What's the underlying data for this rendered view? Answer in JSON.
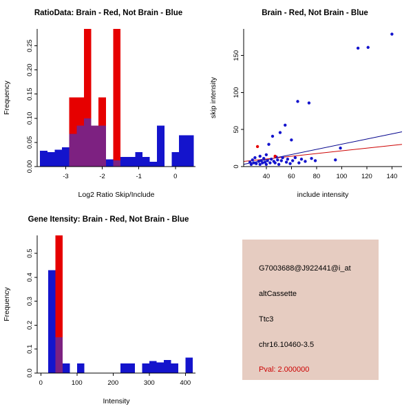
{
  "chart_data": [
    {
      "id": "ratio-histogram",
      "type": "bar",
      "title": "RatioData: Brain - Red, Not Brain - Blue",
      "xlabel": "Log2 Ratio Skip/Include",
      "ylabel": "Frequency",
      "xlim": [
        -3.78,
        0.55
      ],
      "ylim": [
        0,
        0.285
      ],
      "xticks": [
        -3,
        -2,
        -1,
        0
      ],
      "xtick_labels": [
        "-3",
        "-2",
        "-1",
        "0"
      ],
      "yticks": [
        0,
        0.05,
        0.1,
        0.15,
        0.2,
        0.25
      ],
      "ytick_labels": [
        "0.00",
        "0.05",
        "0.10",
        "0.15",
        "0.20",
        "0.25"
      ],
      "bin_width": 0.2,
      "grid": false,
      "overlap_color": "#7d2181",
      "series": [
        {
          "name": "Brain",
          "color": "#e60000",
          "bins": [
            [
              -2.9,
              0.143
            ],
            [
              -2.7,
              0.143
            ],
            [
              -2.5,
              0.285
            ],
            [
              -2.3,
              0.085
            ],
            [
              -2.1,
              0.143
            ],
            [
              -1.7,
              0.285
            ]
          ]
        },
        {
          "name": "Not Brain",
          "color": "#1414cc",
          "bins": [
            [
              -3.7,
              0.033
            ],
            [
              -3.5,
              0.03
            ],
            [
              -3.3,
              0.035
            ],
            [
              -3.1,
              0.04
            ],
            [
              -2.9,
              0.068
            ],
            [
              -2.7,
              0.085
            ],
            [
              -2.5,
              0.1
            ],
            [
              -2.3,
              0.085
            ],
            [
              -2.1,
              0.085
            ],
            [
              -1.9,
              0.015
            ],
            [
              -1.7,
              0.013
            ],
            [
              -1.5,
              0.02
            ],
            [
              -1.3,
              0.02
            ],
            [
              -1.1,
              0.03
            ],
            [
              -0.9,
              0.02
            ],
            [
              -0.7,
              0.01
            ],
            [
              -0.5,
              0.085
            ],
            [
              -0.1,
              0.03
            ],
            [
              0.1,
              0.065
            ],
            [
              0.3,
              0.065
            ]
          ]
        }
      ]
    },
    {
      "id": "intensity-scatter",
      "type": "scatter",
      "title": "Brain - Red, Not Brain - Blue",
      "xlabel": "include intensity",
      "ylabel": "skip intensity",
      "xlim": [
        22,
        148
      ],
      "ylim": [
        0,
        186
      ],
      "xticks": [
        40,
        60,
        80,
        100,
        120,
        140
      ],
      "xtick_labels": [
        "40",
        "60",
        "80",
        "100",
        "120",
        "140"
      ],
      "yticks": [
        0,
        50,
        100,
        150
      ],
      "ytick_labels": [
        "0",
        "50",
        "100",
        "150"
      ],
      "grid": false,
      "series": [
        {
          "name": "Not Brain",
          "color": "#1414cd",
          "points": [
            [
              27,
              6
            ],
            [
              28,
              3
            ],
            [
              29,
              9
            ],
            [
              30,
              5
            ],
            [
              31,
              12
            ],
            [
              32,
              4
            ],
            [
              34,
              7
            ],
            [
              35,
              3
            ],
            [
              35,
              14
            ],
            [
              36,
              8
            ],
            [
              37,
              5
            ],
            [
              38,
              11
            ],
            [
              39,
              6
            ],
            [
              40,
              3
            ],
            [
              40,
              16
            ],
            [
              41,
              8
            ],
            [
              42,
              30
            ],
            [
              43,
              5
            ],
            [
              44,
              10
            ],
            [
              45,
              41
            ],
            [
              46,
              7
            ],
            [
              47,
              5
            ],
            [
              48,
              13
            ],
            [
              49,
              9
            ],
            [
              50,
              3
            ],
            [
              51,
              46
            ],
            [
              52,
              8
            ],
            [
              53,
              12
            ],
            [
              55,
              56
            ],
            [
              56,
              6
            ],
            [
              57,
              10
            ],
            [
              59,
              4
            ],
            [
              60,
              36
            ],
            [
              61,
              8
            ],
            [
              63,
              12
            ],
            [
              65,
              88
            ],
            [
              66,
              5
            ],
            [
              68,
              10
            ],
            [
              71,
              7
            ],
            [
              74,
              86
            ],
            [
              76,
              11
            ],
            [
              79,
              8
            ],
            [
              95,
              9
            ],
            [
              99,
              25
            ],
            [
              113,
              160
            ],
            [
              121,
              161
            ],
            [
              140,
              179
            ]
          ]
        },
        {
          "name": "Brain",
          "color": "#e60000",
          "points": [
            [
              33,
              27
            ],
            [
              47,
              14
            ]
          ]
        }
      ],
      "lines": [
        {
          "name": "not-brain-fit-line",
          "color": "#00008b",
          "x": [
            22,
            148
          ],
          "y": [
            3,
            47
          ]
        },
        {
          "name": "brain-fit-line",
          "color": "#cd0000",
          "x": [
            22,
            148
          ],
          "y": [
            7,
            30
          ]
        }
      ]
    },
    {
      "id": "gene-intensity-histogram",
      "type": "bar",
      "title": "Gene Itensity: Brain - Red, Not Brain - Blue",
      "xlabel": "Intensity",
      "ylabel": "Frequency",
      "xlim": [
        -10,
        428
      ],
      "ylim": [
        0,
        0.575
      ],
      "xticks": [
        0,
        100,
        200,
        300,
        400
      ],
      "xtick_labels": [
        "0",
        "100",
        "200",
        "300",
        "400"
      ],
      "yticks": [
        0,
        0.1,
        0.2,
        0.3,
        0.4,
        0.5
      ],
      "ytick_labels": [
        "0.0",
        "0.1",
        "0.2",
        "0.3",
        "0.4",
        "0.5"
      ],
      "bin_width": 20,
      "grid": false,
      "overlap_color": "#7d2181",
      "series": [
        {
          "name": "Brain",
          "color": "#e60000",
          "bins": [
            [
              40,
              0.575
            ]
          ]
        },
        {
          "name": "Not Brain",
          "color": "#1414cc",
          "bins": [
            [
              20,
              0.43
            ],
            [
              40,
              0.15
            ],
            [
              60,
              0.04
            ],
            [
              100,
              0.04
            ],
            [
              220,
              0.04
            ],
            [
              240,
              0.04
            ],
            [
              280,
              0.04
            ],
            [
              300,
              0.05
            ],
            [
              320,
              0.045
            ],
            [
              340,
              0.055
            ],
            [
              360,
              0.04
            ],
            [
              400,
              0.065
            ]
          ]
        }
      ]
    }
  ],
  "info_panel": {
    "background": "#e6ccc1",
    "lines": [
      {
        "text": "G7003688@J922441@i_at",
        "color": "#000000"
      },
      {
        "text": "altCassette",
        "color": "#000000"
      },
      {
        "text": "Ttc3",
        "color": "#000000"
      },
      {
        "text": "chr16.10460-3.5",
        "color": "#000000"
      },
      {
        "text": "Pval: 2.000000",
        "color": "#cc0000"
      }
    ]
  }
}
